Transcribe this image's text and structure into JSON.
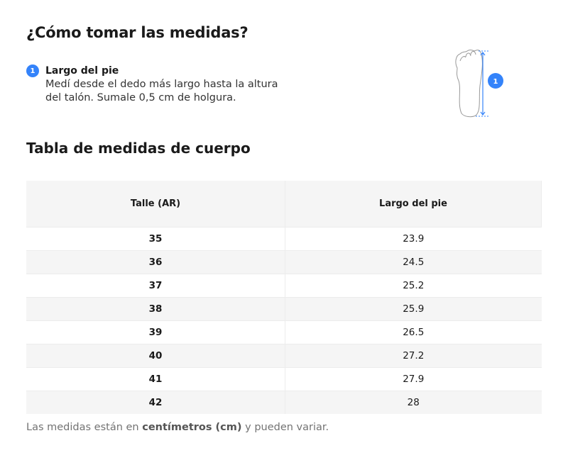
{
  "how_to": {
    "title": "¿Cómo tomar las medidas?",
    "steps": [
      {
        "number": "1",
        "title": "Largo del pie",
        "description": "Medí desde el dedo más largo hasta la altura del talón. Sumale 0,5 cm de holgura."
      }
    ],
    "diagram_badge": "1"
  },
  "table": {
    "title": "Tabla de medidas de cuerpo",
    "headers": [
      "Talle (AR)",
      "Largo del pie"
    ],
    "rows": [
      [
        "35",
        "23.9"
      ],
      [
        "36",
        "24.5"
      ],
      [
        "37",
        "25.2"
      ],
      [
        "38",
        "25.9"
      ],
      [
        "39",
        "26.5"
      ],
      [
        "40",
        "27.2"
      ],
      [
        "41",
        "27.9"
      ],
      [
        "42",
        "28"
      ]
    ]
  },
  "note": {
    "prefix": "Las medidas están en ",
    "bold": "centímetros (cm)",
    "suffix": " y pueden variar."
  },
  "colors": {
    "accent": "#3483fa"
  },
  "icons": [
    "foot-measure-icon"
  ]
}
